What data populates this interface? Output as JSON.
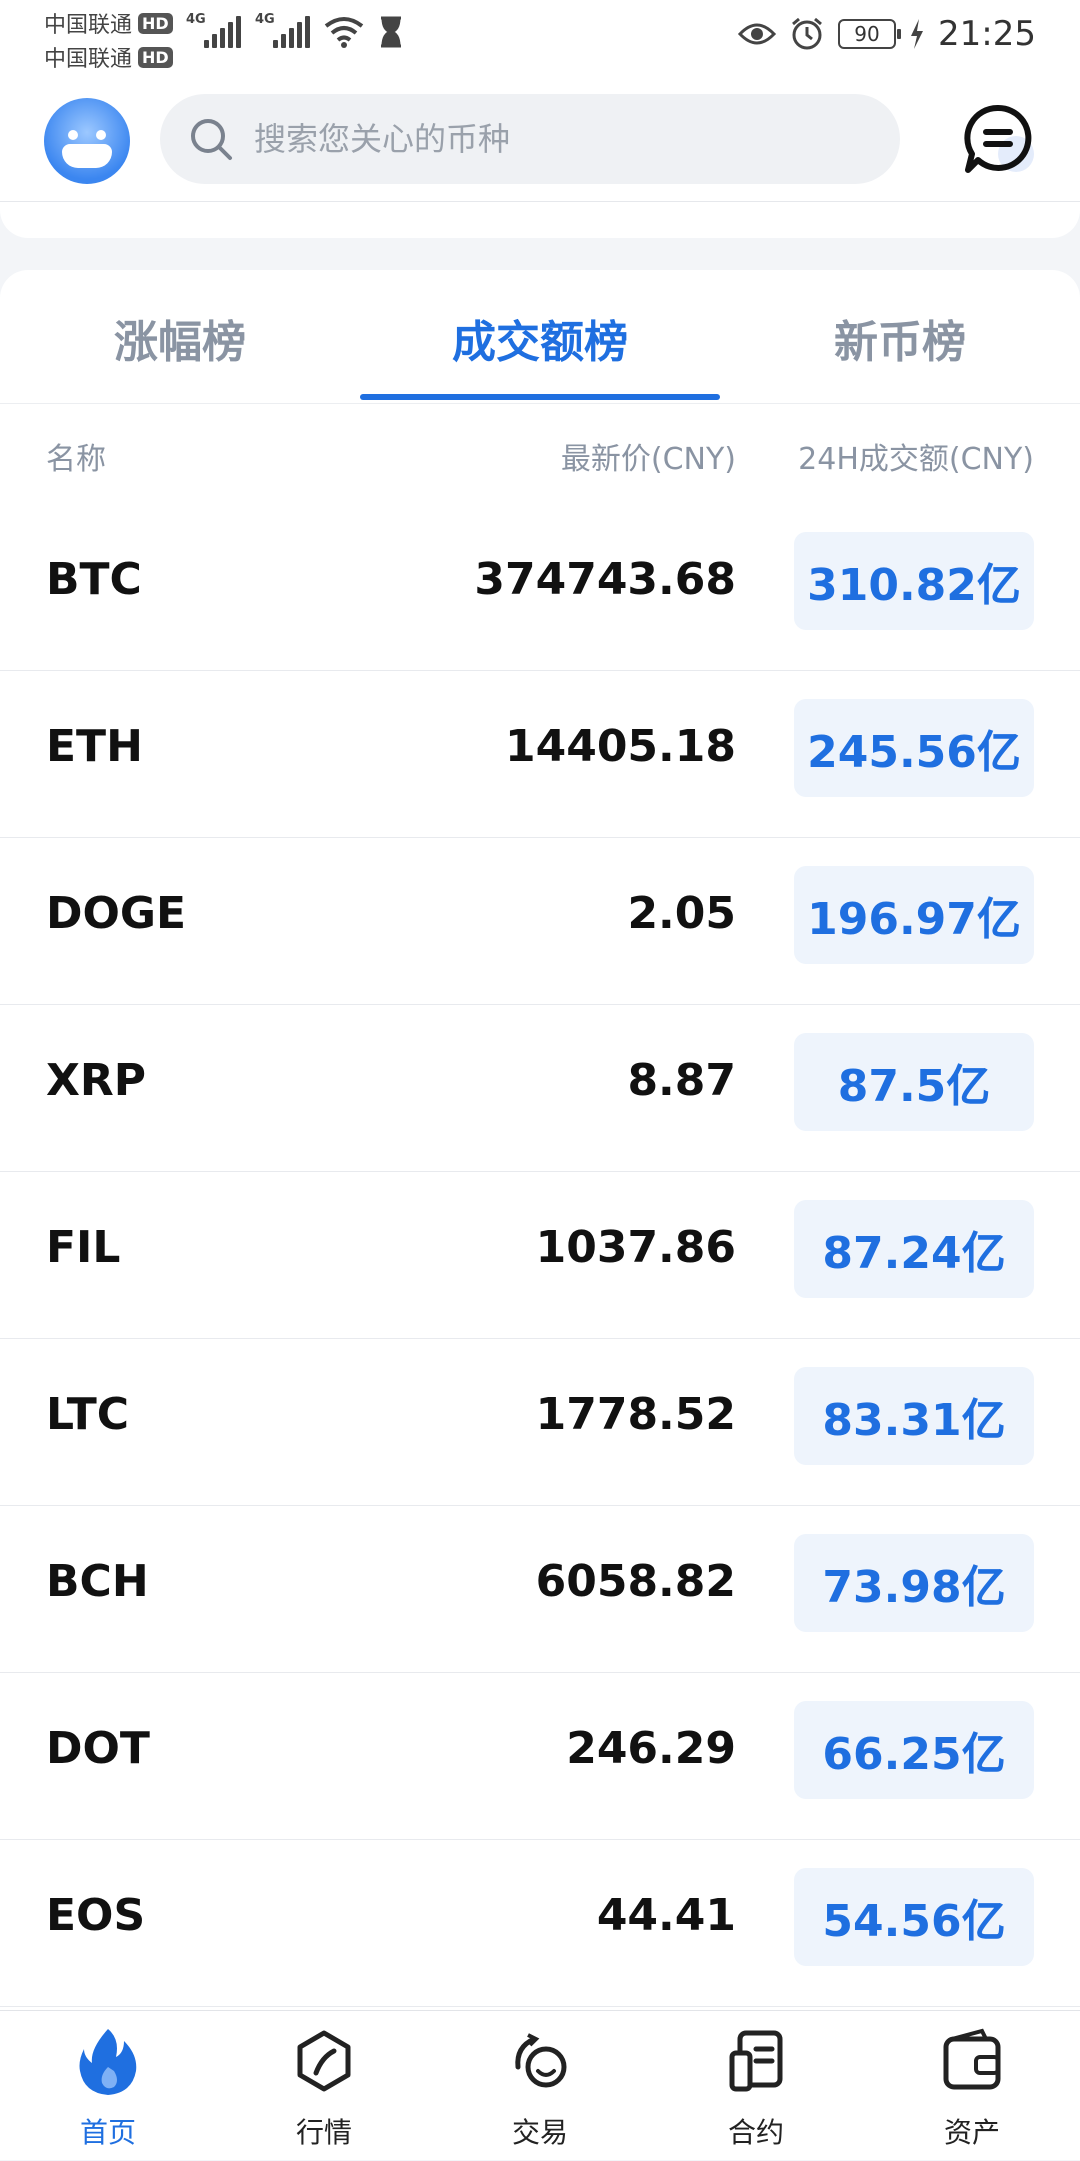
{
  "status_bar": {
    "carrier1": "中国联通",
    "carrier2": "中国联通",
    "hd": "HD",
    "network": "4G",
    "battery": "90",
    "time": "21:25"
  },
  "header": {
    "search_placeholder": "搜索您关心的币种"
  },
  "tabs": [
    {
      "label": "涨幅榜"
    },
    {
      "label": "成交额榜"
    },
    {
      "label": "新币榜"
    }
  ],
  "table": {
    "columns": {
      "name": "名称",
      "price": "最新价(CNY)",
      "volume": "24H成交额(CNY)"
    },
    "rows": [
      {
        "symbol": "BTC",
        "price": "374743.68",
        "volume": "310.82亿"
      },
      {
        "symbol": "ETH",
        "price": "14405.18",
        "volume": "245.56亿"
      },
      {
        "symbol": "DOGE",
        "price": "2.05",
        "volume": "196.97亿"
      },
      {
        "symbol": "XRP",
        "price": "8.87",
        "volume": "87.5亿"
      },
      {
        "symbol": "FIL",
        "price": "1037.86",
        "volume": "87.24亿"
      },
      {
        "symbol": "LTC",
        "price": "1778.52",
        "volume": "83.31亿"
      },
      {
        "symbol": "BCH",
        "price": "6058.82",
        "volume": "73.98亿"
      },
      {
        "symbol": "DOT",
        "price": "246.29",
        "volume": "66.25亿"
      },
      {
        "symbol": "EOS",
        "price": "44.41",
        "volume": "54.56亿"
      }
    ]
  },
  "bottom_nav": [
    {
      "label": "首页",
      "icon": "flame-icon"
    },
    {
      "label": "行情",
      "icon": "market-icon"
    },
    {
      "label": "交易",
      "icon": "trade-icon"
    },
    {
      "label": "合约",
      "icon": "contract-icon"
    },
    {
      "label": "资产",
      "icon": "wallet-icon"
    }
  ],
  "colors": {
    "accent": "#1f6fe0",
    "volume_bg": "#eef4fc",
    "muted": "#8a94a3"
  }
}
